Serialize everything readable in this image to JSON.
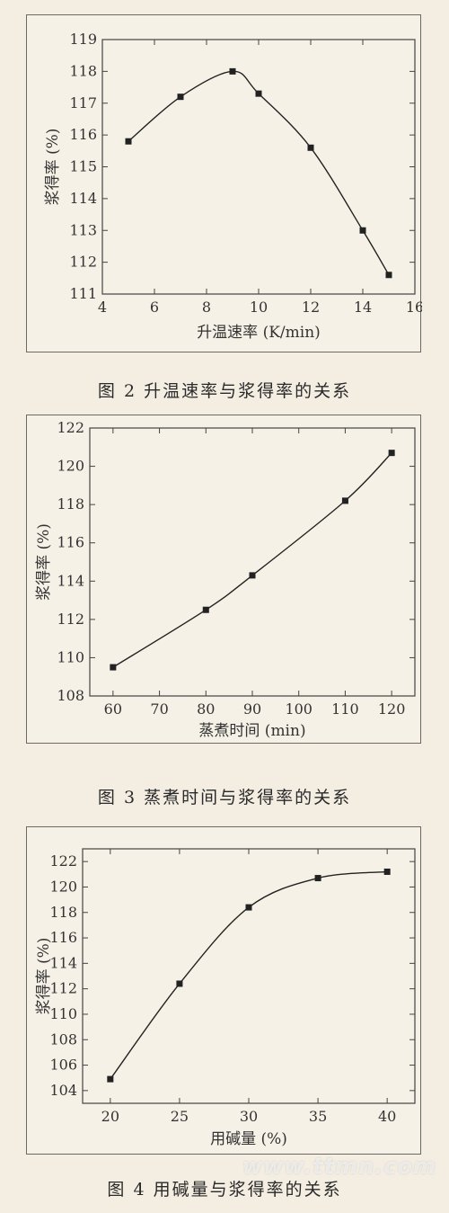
{
  "chart_data": [
    {
      "type": "line",
      "caption": "图 2   升温速率与浆得率的关系",
      "xlabel": "升温速率 (K/min)",
      "ylabel": "浆得率 (%)",
      "xlim": [
        4,
        16
      ],
      "ylim": [
        111,
        119
      ],
      "xticks": [
        4,
        6,
        8,
        10,
        12,
        14,
        16
      ],
      "yticks": [
        111,
        112,
        113,
        114,
        115,
        116,
        117,
        118,
        119
      ],
      "grid": false,
      "series": [
        {
          "x": [
            5,
            7,
            9,
            10,
            12,
            14,
            15
          ],
          "values": [
            115.8,
            117.2,
            118.0,
            117.3,
            115.6,
            113.0,
            111.6
          ]
        }
      ]
    },
    {
      "type": "line",
      "caption": "图 3   蒸煮时间与浆得率的关系",
      "xlabel": "蒸煮时间 (min)",
      "ylabel": "浆得率 (%)",
      "xlim": [
        55,
        125
      ],
      "ylim": [
        108,
        122
      ],
      "xticks": [
        60,
        70,
        80,
        90,
        100,
        110,
        120
      ],
      "yticks": [
        108,
        110,
        112,
        114,
        116,
        118,
        120,
        122
      ],
      "grid": false,
      "series": [
        {
          "x": [
            60,
            80,
            90,
            110,
            120
          ],
          "values": [
            109.5,
            112.5,
            114.3,
            118.2,
            120.7
          ]
        }
      ]
    },
    {
      "type": "line",
      "caption": "图 4   用碱量与浆得率的关系",
      "xlabel": "用碱量 (%)",
      "ylabel": "浆得率 (%)",
      "xlim": [
        18,
        42
      ],
      "ylim": [
        103,
        123
      ],
      "xticks": [
        20,
        25,
        30,
        35,
        40
      ],
      "yticks": [
        104,
        106,
        108,
        110,
        112,
        114,
        116,
        118,
        120,
        122
      ],
      "grid": false,
      "series": [
        {
          "x": [
            20,
            25,
            30,
            35,
            40
          ],
          "values": [
            104.9,
            112.4,
            118.4,
            120.7,
            121.2
          ]
        }
      ]
    }
  ],
  "watermark": "www.ttmn.com"
}
